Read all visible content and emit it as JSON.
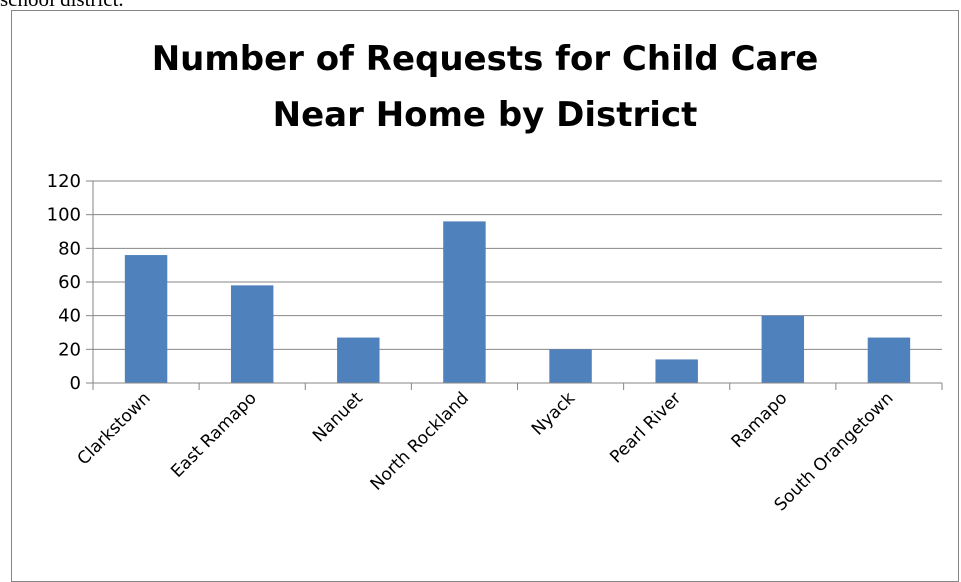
{
  "document": {
    "caption": "school district."
  },
  "chart_data": {
    "type": "bar",
    "title_lines": [
      "Number of Requests for Child Care",
      "Near Home by District"
    ],
    "categories": [
      "Clarkstown",
      "East Ramapo",
      "Nanuet",
      "North Rockland",
      "Nyack",
      "Pearl River",
      "Ramapo",
      "South Orangetown"
    ],
    "values": [
      76,
      58,
      27,
      96,
      20,
      14,
      40,
      27
    ],
    "ylim": [
      0,
      120
    ],
    "yticks": [
      0,
      20,
      40,
      60,
      80,
      100,
      120
    ],
    "grid": true,
    "legend": "none",
    "bar_color": "#4F81BD",
    "grid_color": "#868686"
  }
}
